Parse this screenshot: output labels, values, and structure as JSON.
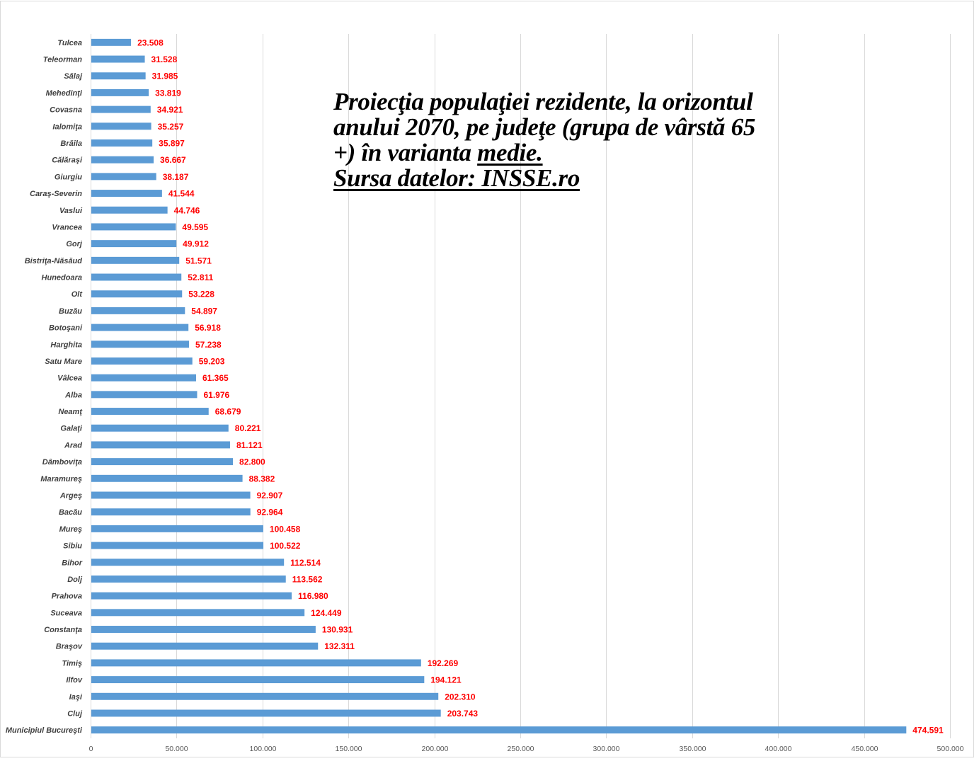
{
  "chart_data": {
    "type": "bar",
    "orientation": "horizontal",
    "title_lines": [
      "Proiecţia populaţiei rezidente, la orizontul",
      "anului 2070, pe judeţe (grupa de vârstă 65",
      "+) în varianta",
      "medie.",
      "Sursa datelor: INSSE.ro"
    ],
    "xlabel": "",
    "ylabel": "",
    "xlim": [
      0,
      500000
    ],
    "x_ticks": [
      0,
      50000,
      100000,
      150000,
      200000,
      250000,
      300000,
      350000,
      400000,
      450000,
      500000
    ],
    "x_tick_labels": [
      "0",
      "50.000",
      "100.000",
      "150.000",
      "200.000",
      "250.000",
      "300.000",
      "350.000",
      "400.000",
      "450.000",
      "500.000"
    ],
    "grid": "vertical",
    "legend": "none",
    "series_color": "#5b9bd5",
    "label_color": "#ff0000",
    "categories": [
      "Tulcea",
      "Teleorman",
      "Sălaj",
      "Mehedinţi",
      "Covasna",
      "Ialomiţa",
      "Brăila",
      "Călăraşi",
      "Giurgiu",
      "Caraş-Severin",
      "Vaslui",
      "Vrancea",
      "Gorj",
      "Bistriţa-Năsăud",
      "Hunedoara",
      "Olt",
      "Buzău",
      "Botoşani",
      "Harghita",
      "Satu Mare",
      "Vâlcea",
      "Alba",
      "Neamţ",
      "Galaţi",
      "Arad",
      "Dâmboviţa",
      "Maramureş",
      "Argeş",
      "Bacău",
      "Mureş",
      "Sibiu",
      "Bihor",
      "Dolj",
      "Prahova",
      "Suceava",
      "Constanţa",
      "Braşov",
      "Timiş",
      "Ilfov",
      "Iaşi",
      "Cluj",
      "Municipiul Bucureşti"
    ],
    "values": [
      23508,
      31528,
      31985,
      33819,
      34921,
      35257,
      35897,
      36667,
      38187,
      41544,
      44746,
      49595,
      49912,
      51571,
      52811,
      53228,
      54897,
      56918,
      57238,
      59203,
      61365,
      61976,
      68679,
      80221,
      81121,
      82800,
      88382,
      92907,
      92964,
      100458,
      100522,
      112514,
      113562,
      116980,
      124449,
      130931,
      132311,
      192269,
      194121,
      202310,
      203743,
      474591
    ],
    "value_labels": [
      "23.508",
      "31.528",
      "31.985",
      "33.819",
      "34.921",
      "35.257",
      "35.897",
      "36.667",
      "38.187",
      "41.544",
      "44.746",
      "49.595",
      "49.912",
      "51.571",
      "52.811",
      "53.228",
      "54.897",
      "56.918",
      "57.238",
      "59.203",
      "61.365",
      "61.976",
      "68.679",
      "80.221",
      "81.121",
      "82.800",
      "88.382",
      "92.907",
      "92.964",
      "100.458",
      "100.522",
      "112.514",
      "113.562",
      "116.980",
      "124.449",
      "130.931",
      "132.311",
      "192.269",
      "194.121",
      "202.310",
      "203.743",
      "474.591"
    ]
  }
}
